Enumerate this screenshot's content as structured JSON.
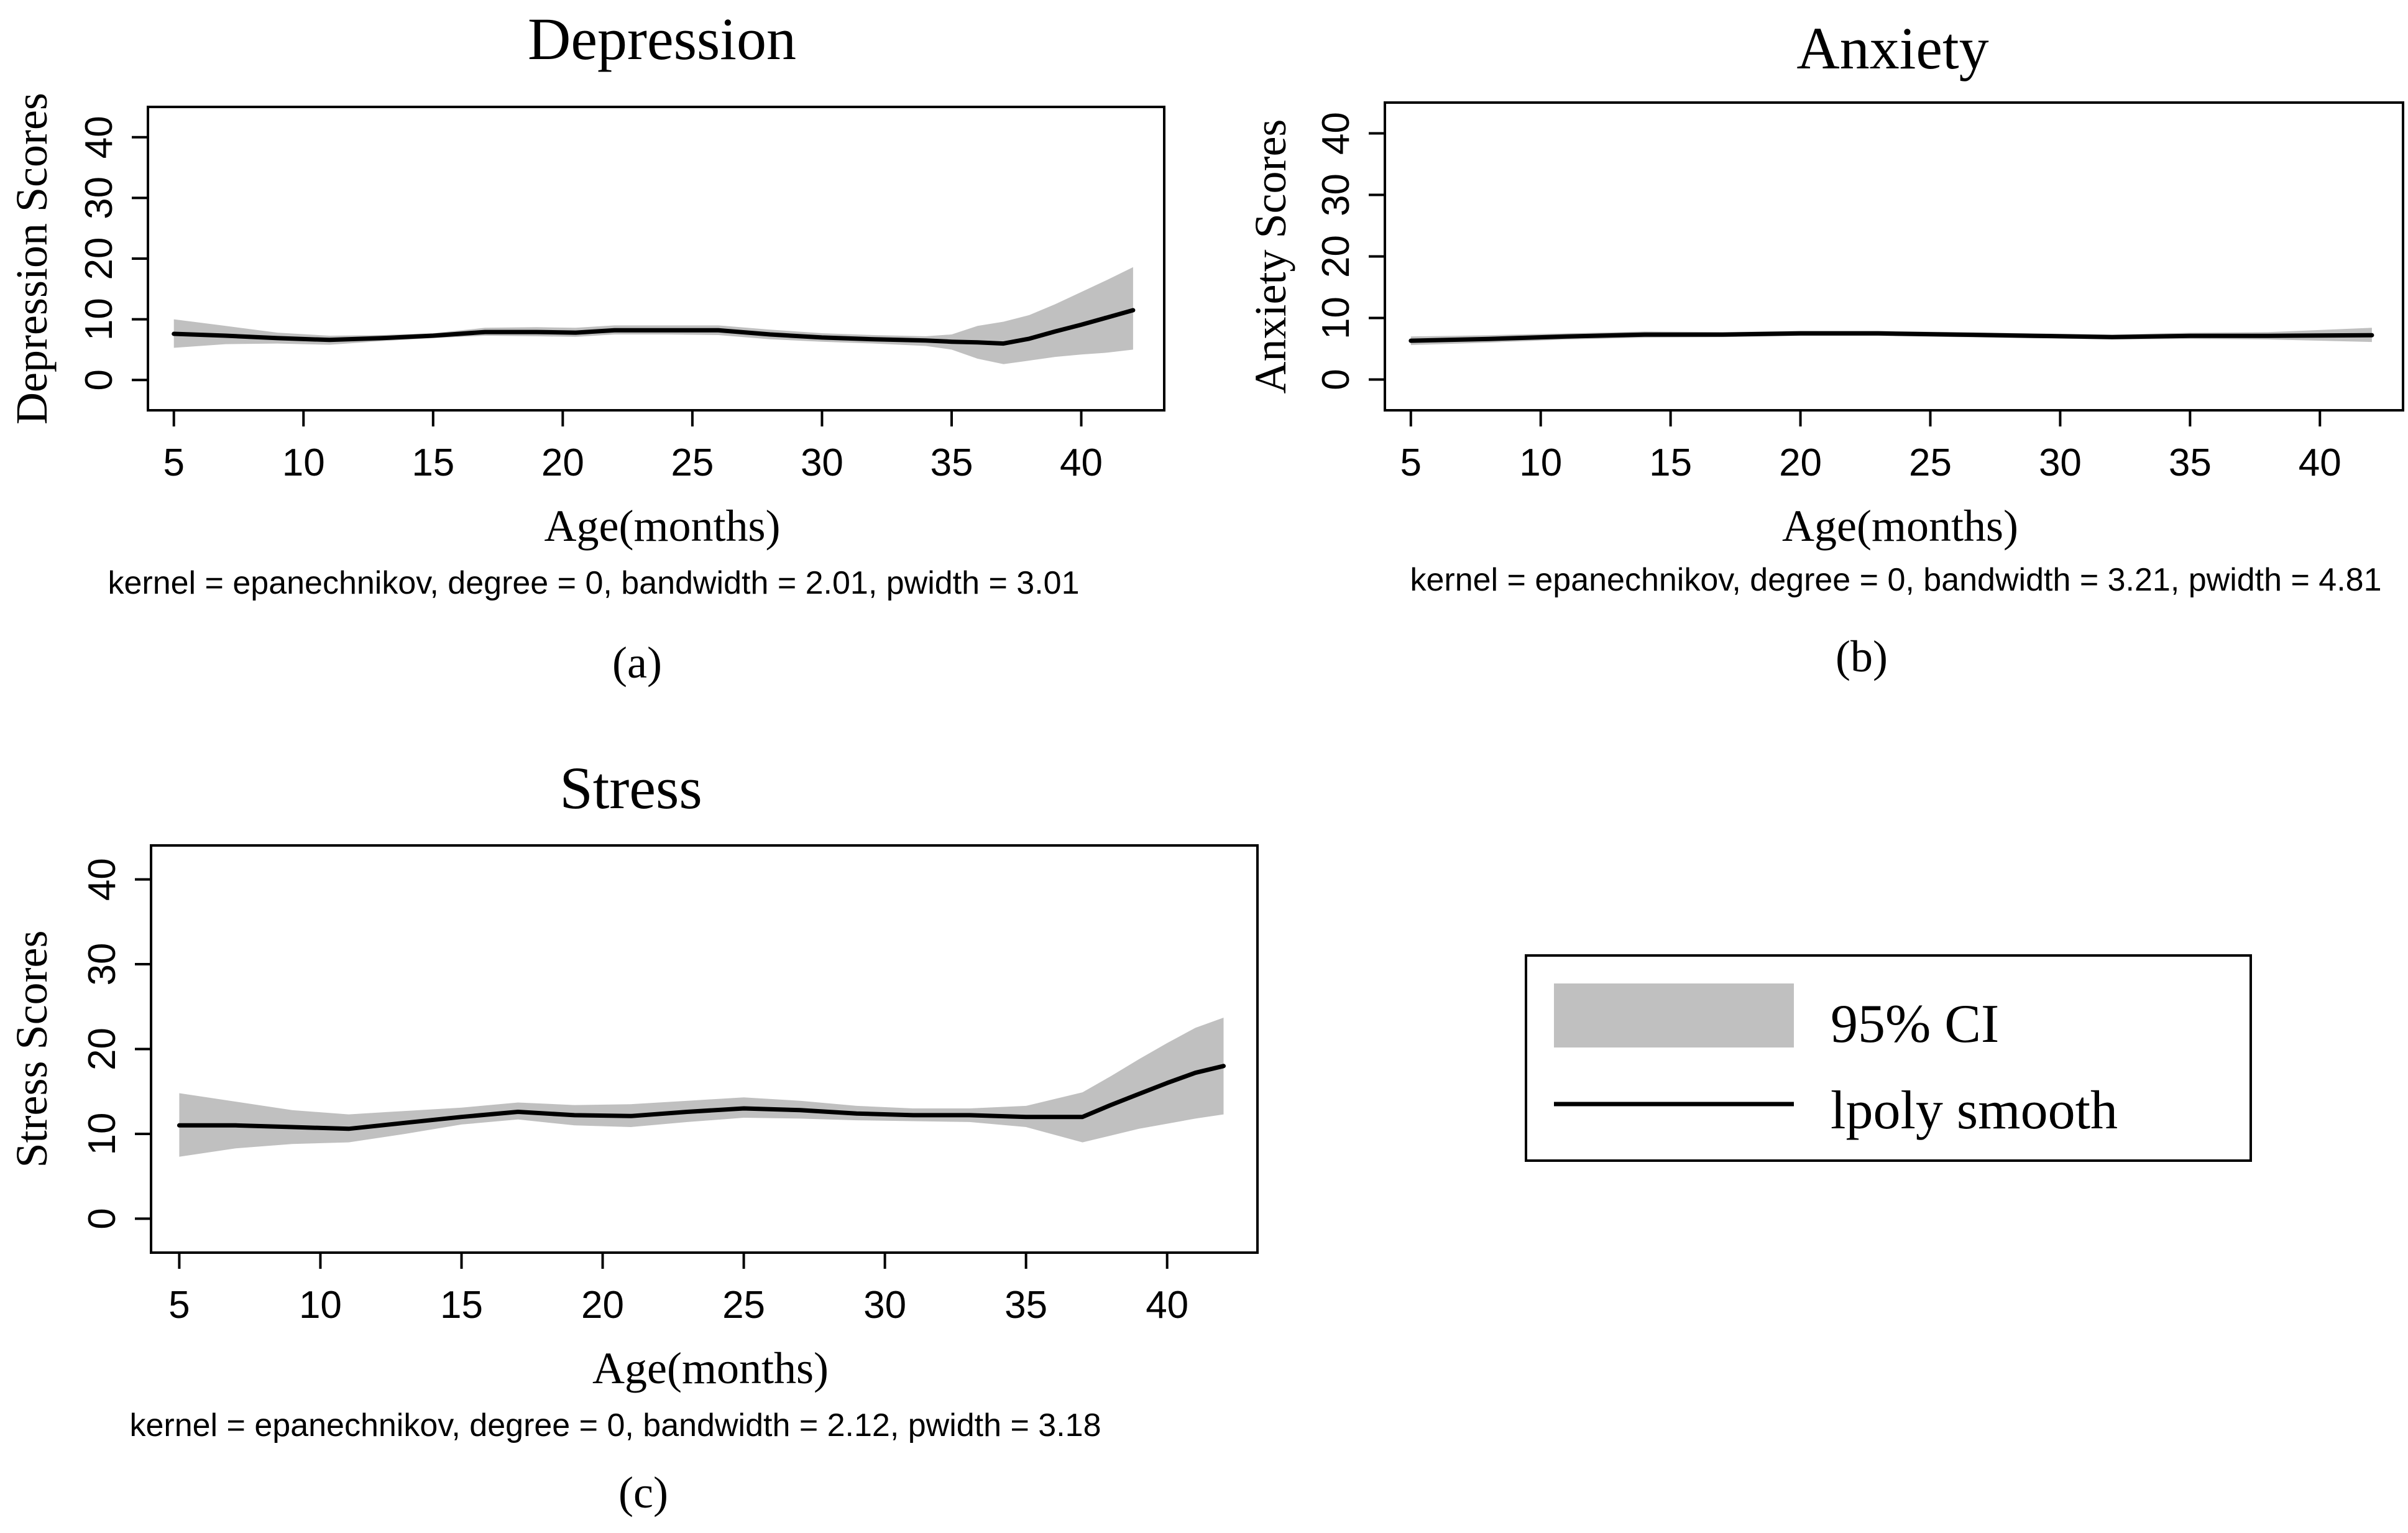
{
  "chart_data": [
    {
      "type": "line",
      "panel": "(a)",
      "title": "Depression",
      "xlabel": "Age(months)",
      "ylabel": "Depression Scores",
      "note": "kernel = epanechnikov, degree = 0, bandwidth = 2.01, pwidth = 3.01",
      "xticks": [
        "5",
        "10",
        "15",
        "20",
        "25",
        "30",
        "35",
        "40"
      ],
      "yticks": [
        "0",
        "10",
        "20",
        "30",
        "40"
      ],
      "xlim": [
        4,
        43.2
      ],
      "ylim": [
        -5,
        45
      ],
      "series": [
        {
          "name": "lpoly smooth",
          "x": [
            5,
            7,
            9,
            11,
            13,
            15,
            17,
            19,
            20.5,
            22,
            24,
            26,
            28,
            30,
            32,
            34,
            35,
            36,
            37,
            38,
            39,
            40,
            41,
            42
          ],
          "values": [
            7.6,
            7.3,
            6.9,
            6.6,
            6.9,
            7.3,
            7.9,
            7.9,
            7.8,
            8.2,
            8.2,
            8.2,
            7.5,
            7.0,
            6.7,
            6.5,
            6.3,
            6.2,
            6.0,
            6.8,
            8.0,
            9.1,
            10.3,
            11.5
          ]
        },
        {
          "name": "95% CI lower",
          "x": [
            5,
            7,
            9,
            11,
            13,
            15,
            17,
            19,
            20.5,
            22,
            24,
            26,
            28,
            30,
            32,
            34,
            35,
            36,
            37,
            38,
            39,
            40,
            41,
            42
          ],
          "values": [
            5.3,
            5.9,
            6.0,
            5.8,
            6.4,
            6.9,
            7.3,
            7.2,
            7.1,
            7.5,
            7.5,
            7.4,
            6.7,
            6.3,
            6.0,
            5.6,
            5.0,
            3.5,
            2.6,
            3.2,
            3.8,
            4.2,
            4.5,
            5.0
          ]
        },
        {
          "name": "95% CI upper",
          "x": [
            5,
            7,
            9,
            11,
            13,
            15,
            17,
            19,
            20.5,
            22,
            24,
            26,
            28,
            30,
            32,
            34,
            35,
            36,
            37,
            38,
            39,
            40,
            41,
            42
          ],
          "values": [
            10.0,
            8.9,
            7.8,
            7.3,
            7.4,
            7.7,
            8.6,
            8.7,
            8.6,
            9.0,
            9.0,
            9.0,
            8.3,
            7.7,
            7.4,
            7.2,
            7.5,
            8.9,
            9.6,
            10.7,
            12.5,
            14.5,
            16.5,
            18.6
          ]
        }
      ]
    },
    {
      "type": "line",
      "panel": "(b)",
      "title": "Anxiety",
      "xlabel": "Age(months)",
      "ylabel": "Anxiety Scores",
      "note": "kernel = epanechnikov, degree = 0, bandwidth = 3.21, pwidth = 4.81",
      "xticks": [
        "5",
        "10",
        "15",
        "20",
        "25",
        "30",
        "35",
        "40"
      ],
      "yticks": [
        "0",
        "10",
        "20",
        "30",
        "40"
      ],
      "xlim": [
        4,
        43.2
      ],
      "ylim": [
        -5,
        45
      ],
      "series": [
        {
          "name": "lpoly smooth",
          "x": [
            5,
            8,
            11,
            14,
            17,
            20,
            23,
            26,
            29,
            32,
            35,
            38,
            42
          ],
          "values": [
            6.3,
            6.6,
            7.0,
            7.3,
            7.3,
            7.5,
            7.5,
            7.3,
            7.1,
            6.9,
            7.1,
            7.1,
            7.2
          ]
        },
        {
          "name": "95% CI lower",
          "x": [
            5,
            8,
            11,
            14,
            17,
            20,
            23,
            26,
            29,
            32,
            35,
            38,
            42
          ],
          "values": [
            5.6,
            6.0,
            6.5,
            6.8,
            6.9,
            7.1,
            7.1,
            6.9,
            6.7,
            6.5,
            6.6,
            6.5,
            6.1
          ]
        },
        {
          "name": "95% CI upper",
          "x": [
            5,
            8,
            11,
            14,
            17,
            20,
            23,
            26,
            29,
            32,
            35,
            38,
            42
          ],
          "values": [
            7.0,
            7.2,
            7.5,
            7.8,
            7.7,
            7.9,
            7.9,
            7.7,
            7.5,
            7.3,
            7.6,
            7.7,
            8.4
          ]
        }
      ]
    },
    {
      "type": "line",
      "panel": "(c)",
      "title": "Stress",
      "xlabel": "Age(months)",
      "ylabel": "Stress Scores",
      "note": "kernel = epanechnikov, degree = 0, bandwidth = 2.12, pwidth = 3.18",
      "xticks": [
        "5",
        "10",
        "15",
        "20",
        "25",
        "30",
        "35",
        "40"
      ],
      "yticks": [
        "0",
        "10",
        "20",
        "30",
        "40"
      ],
      "xlim": [
        4,
        43.2
      ],
      "ylim": [
        -4,
        44
      ],
      "series": [
        {
          "name": "lpoly smooth",
          "x": [
            5,
            7,
            9,
            11,
            13,
            15,
            17,
            19,
            21,
            23,
            25,
            27,
            29,
            31,
            33,
            35,
            37,
            38,
            39,
            40,
            41,
            42
          ],
          "values": [
            11.0,
            11.0,
            10.8,
            10.6,
            11.3,
            12.0,
            12.6,
            12.2,
            12.1,
            12.6,
            13.0,
            12.8,
            12.4,
            12.2,
            12.2,
            12.0,
            12.0,
            13.4,
            14.7,
            16.0,
            17.2,
            18.0
          ]
        },
        {
          "name": "95% CI lower",
          "x": [
            5,
            7,
            9,
            11,
            13,
            15,
            17,
            19,
            21,
            23,
            25,
            27,
            29,
            31,
            33,
            35,
            37,
            38,
            39,
            40,
            41,
            42
          ],
          "values": [
            7.3,
            8.3,
            8.8,
            9.0,
            10.0,
            11.1,
            11.7,
            11.0,
            10.8,
            11.4,
            11.9,
            11.8,
            11.6,
            11.5,
            11.4,
            10.8,
            9.0,
            9.8,
            10.6,
            11.2,
            11.8,
            12.3
          ]
        },
        {
          "name": "95% CI upper",
          "x": [
            5,
            7,
            9,
            11,
            13,
            15,
            17,
            19,
            21,
            23,
            25,
            27,
            29,
            31,
            33,
            35,
            37,
            38,
            39,
            40,
            41,
            42
          ],
          "values": [
            14.8,
            13.8,
            12.8,
            12.3,
            12.7,
            13.1,
            13.7,
            13.4,
            13.5,
            13.9,
            14.3,
            13.9,
            13.3,
            13.0,
            13.0,
            13.3,
            14.9,
            16.8,
            18.8,
            20.7,
            22.5,
            23.7
          ]
        }
      ]
    }
  ],
  "legend": {
    "ci_label": "95% CI",
    "line_label": "lpoly smooth"
  },
  "colors": {
    "ci_fill": "#c0c0c0",
    "line": "#000000"
  }
}
